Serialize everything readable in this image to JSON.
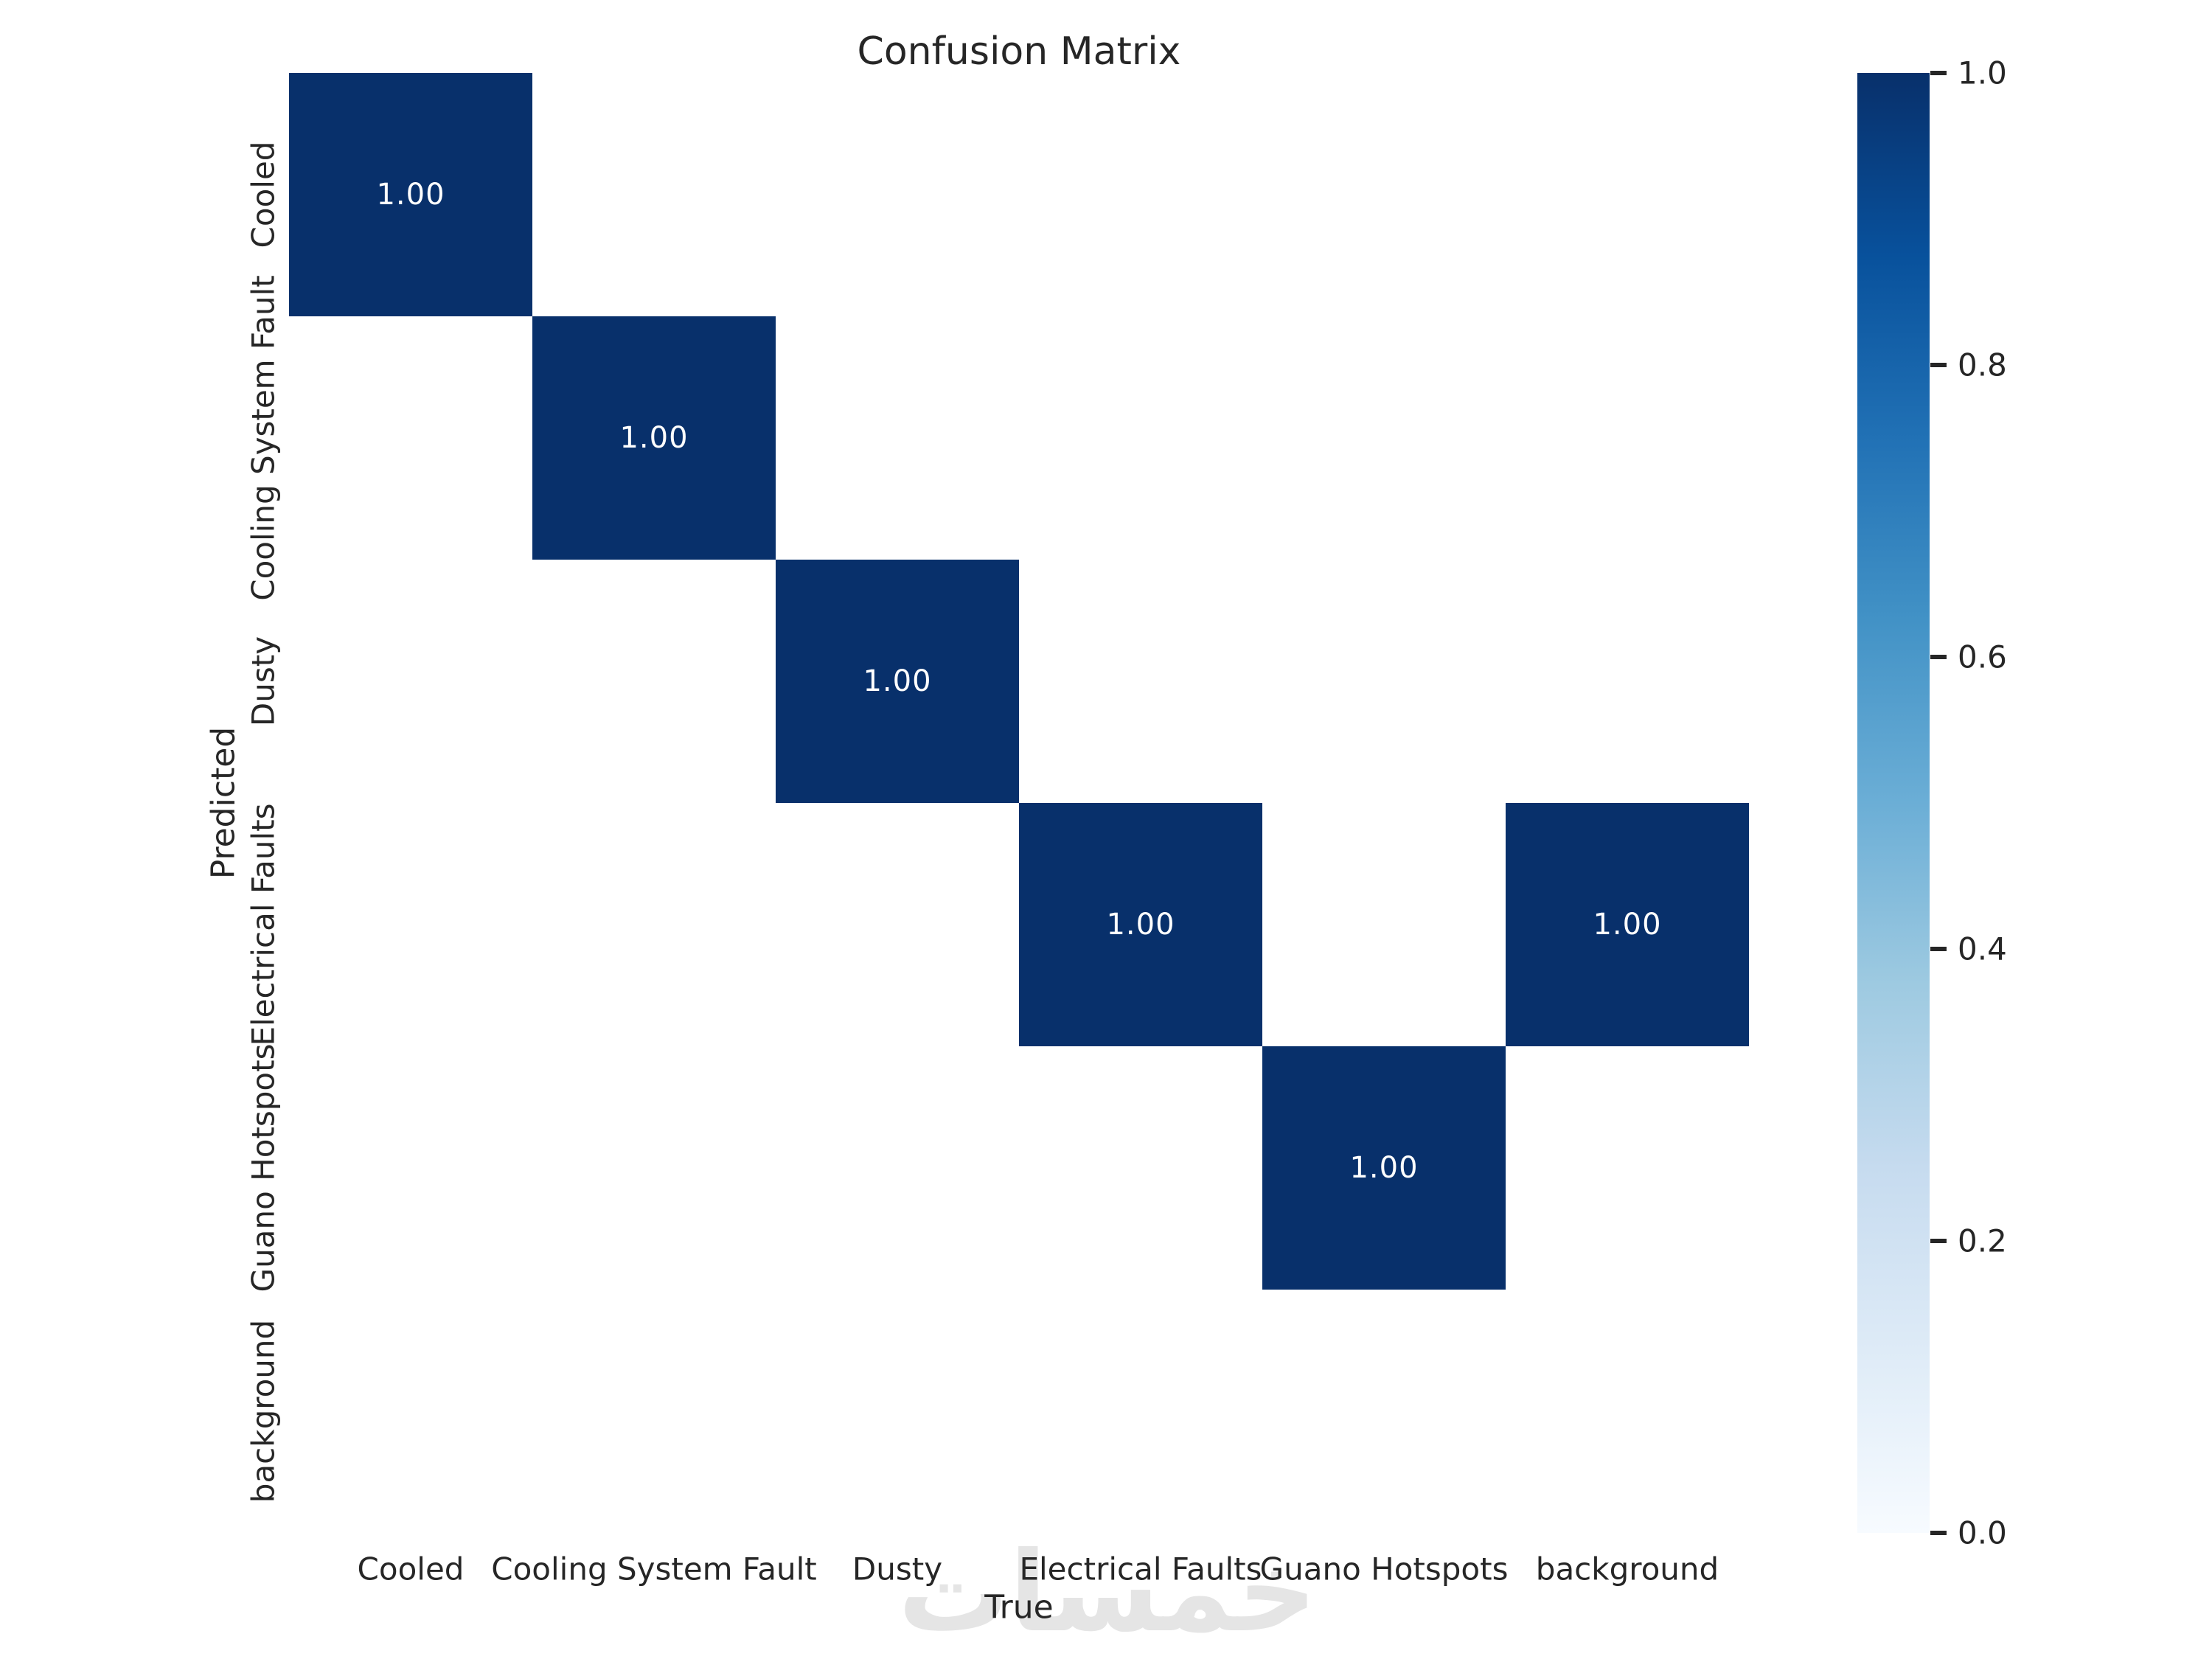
{
  "title": "Confusion Matrix",
  "watermark": {
    "text": "خمسات"
  },
  "colors": {
    "background": "#ffffff",
    "max_cell": "#08306b",
    "zero_cell": "#ffffff",
    "annotation_text": "#ffffff",
    "label_text": "#262626",
    "watermark": "#e5e5e5",
    "colorbar_gradient_low_to_high": [
      "#f7fbff",
      "#deebf7",
      "#c6dbef",
      "#9ecae1",
      "#6baed6",
      "#4292c6",
      "#2171b5",
      "#08519c",
      "#08306b"
    ]
  },
  "chart_data": {
    "type": "heatmap",
    "title": "Confusion Matrix",
    "xlabel": "True",
    "ylabel": "Predicted",
    "x_categories": [
      "Cooled",
      "Cooling System Fault",
      "Dusty",
      "Electrical Faults",
      "Guano Hotspots",
      "background"
    ],
    "y_categories": [
      "Cooled",
      "Cooling System Fault",
      "Dusty",
      "Electrical Faults",
      "Guano Hotspots",
      "background"
    ],
    "matrix": [
      [
        1.0,
        0,
        0,
        0,
        0,
        0
      ],
      [
        0,
        1.0,
        0,
        0,
        0,
        0
      ],
      [
        0,
        0,
        1.0,
        0,
        0,
        0
      ],
      [
        0,
        0,
        0,
        1.0,
        0,
        1.0
      ],
      [
        0,
        0,
        0,
        0,
        1.0,
        0
      ],
      [
        0,
        0,
        0,
        0,
        0,
        0
      ]
    ],
    "annotation_decimals": 2,
    "annotate_zero_cells": false,
    "annotation_example": "1.00",
    "colormap": "Blues",
    "vmin": 0.0,
    "vmax": 1.0,
    "grid": false,
    "legend_position": "none",
    "colorbar": {
      "position": "right",
      "tick_labels": [
        "1.0",
        "0.8",
        "0.6",
        "0.4",
        "0.2",
        "0.0"
      ],
      "tick_values": [
        1.0,
        0.8,
        0.6,
        0.4,
        0.2,
        0.0
      ]
    }
  }
}
